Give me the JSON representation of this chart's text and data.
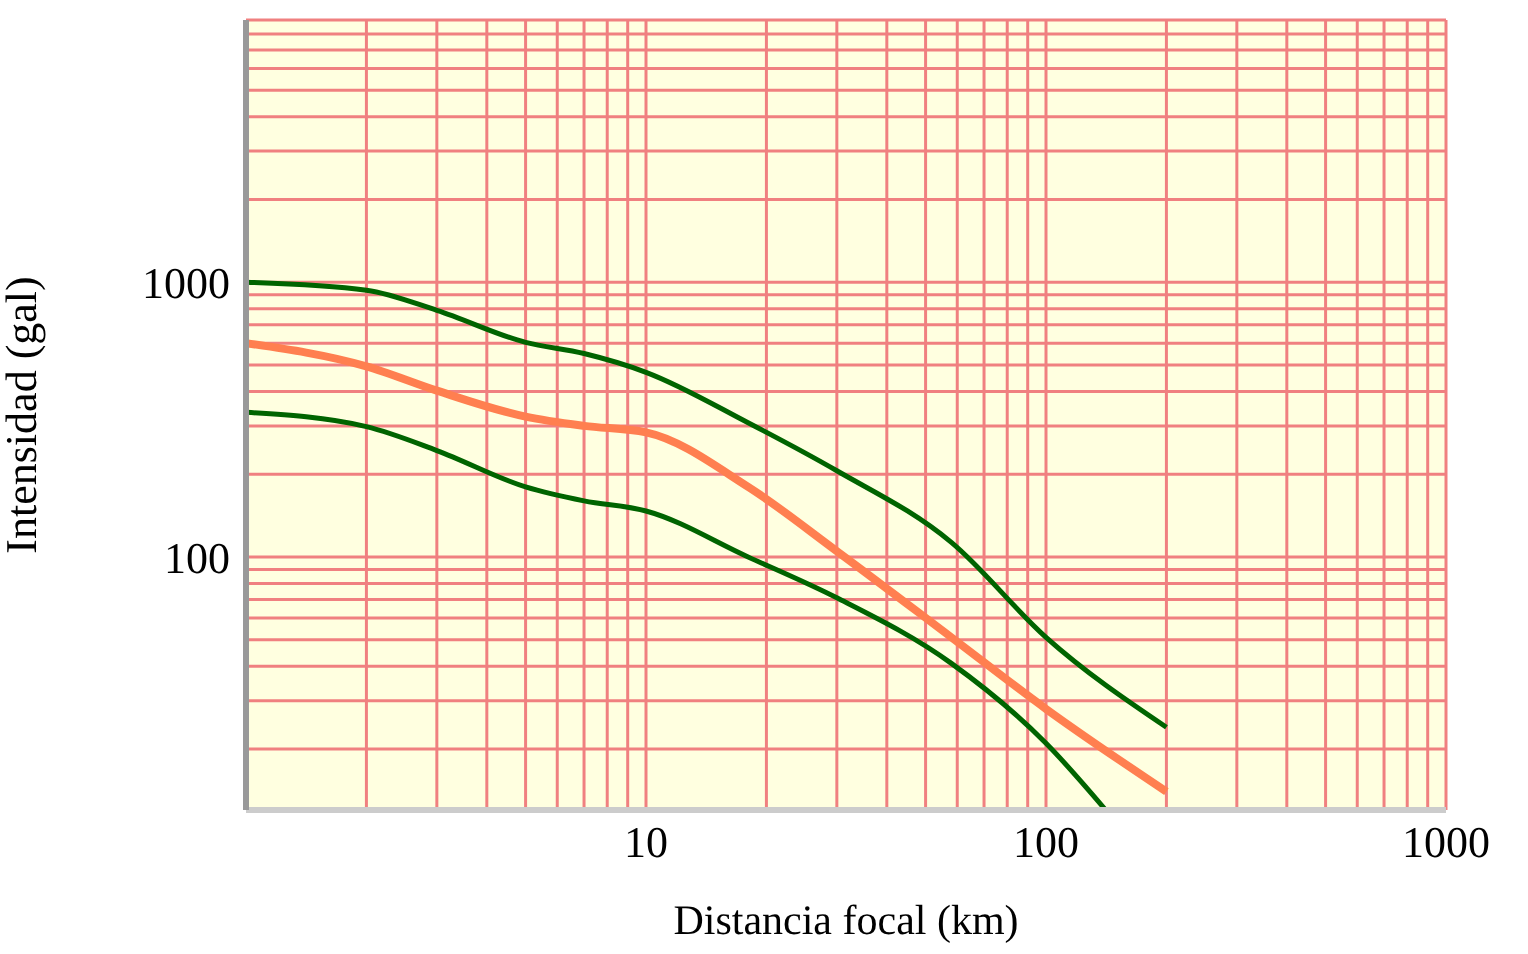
{
  "chart_data": {
    "type": "line",
    "xlabel": "Distancia focal (km)",
    "ylabel": "Intensidad (gal)",
    "log": "xy",
    "grid": true,
    "marker": "none",
    "line_style": "solid",
    "xlim": [
      1,
      1000
    ],
    "ylim": [
      12,
      9000
    ],
    "xticks": [
      {
        "value": 2,
        "label": null
      },
      {
        "value": 3,
        "label": null
      },
      {
        "value": 4,
        "label": null
      },
      {
        "value": 5,
        "label": null
      },
      {
        "value": 6,
        "label": null
      },
      {
        "value": 7,
        "label": null
      },
      {
        "value": 8,
        "label": null
      },
      {
        "value": 9,
        "label": null
      },
      10,
      {
        "value": 20,
        "label": null
      },
      {
        "value": 30,
        "label": null
      },
      {
        "value": 40,
        "label": null
      },
      {
        "value": 50,
        "label": null
      },
      {
        "value": 60,
        "label": null
      },
      {
        "value": 70,
        "label": null
      },
      {
        "value": 80,
        "label": null
      },
      {
        "value": 90,
        "label": null
      },
      100,
      {
        "value": 200,
        "label": null
      },
      {
        "value": 300,
        "label": null
      },
      {
        "value": 400,
        "label": null
      },
      {
        "value": 500,
        "label": null
      },
      {
        "value": 600,
        "label": null
      },
      {
        "value": 700,
        "label": null
      },
      {
        "value": 800,
        "label": null
      },
      {
        "value": 900,
        "label": null
      },
      1000
    ],
    "yticks": [
      {
        "value": 20,
        "label": null
      },
      {
        "value": 30,
        "label": null
      },
      {
        "value": 40,
        "label": null
      },
      {
        "value": 50,
        "label": null
      },
      {
        "value": 60,
        "label": null
      },
      {
        "value": 70,
        "label": null
      },
      {
        "value": 80,
        "label": null
      },
      {
        "value": 90,
        "label": null
      },
      100,
      {
        "value": 200,
        "label": null
      },
      {
        "value": 300,
        "label": null
      },
      {
        "value": 400,
        "label": null
      },
      {
        "value": 500,
        "label": null
      },
      {
        "value": 600,
        "label": null
      },
      {
        "value": 700,
        "label": null
      },
      {
        "value": 800,
        "label": null
      },
      {
        "value": 900,
        "label": null
      },
      1000,
      {
        "value": 2000,
        "label": null
      },
      {
        "value": 3000,
        "label": null
      },
      {
        "value": 4000,
        "label": null
      },
      {
        "value": 5000,
        "label": null
      },
      {
        "value": 6000,
        "label": null
      },
      {
        "value": 7000,
        "label": null
      },
      {
        "value": 8000,
        "label": null
      }
    ],
    "series": [
      {
        "color": "#006400",
        "x": [
          1,
          2,
          3,
          5,
          7,
          10,
          18,
          30,
          58,
          100,
          200
        ],
        "values": [
          1000,
          935,
          790,
          604,
          550,
          470,
          308,
          206,
          113,
          51,
          24
        ]
      },
      {
        "color": "#ff7f50",
        "x": [
          1,
          2,
          3,
          5,
          7,
          10,
          18,
          30,
          58,
          100,
          200
        ],
        "values": [
          600,
          494,
          403,
          324,
          300,
          284,
          180,
          105,
          51,
          28,
          14
        ]
      },
      {
        "color": "#006400",
        "x": [
          1,
          2,
          3,
          5,
          7,
          10,
          18,
          30,
          58,
          100,
          141
        ],
        "values": [
          336,
          298,
          244,
          180,
          160,
          147,
          100,
          71,
          41,
          21,
          12
        ]
      }
    ]
  }
}
